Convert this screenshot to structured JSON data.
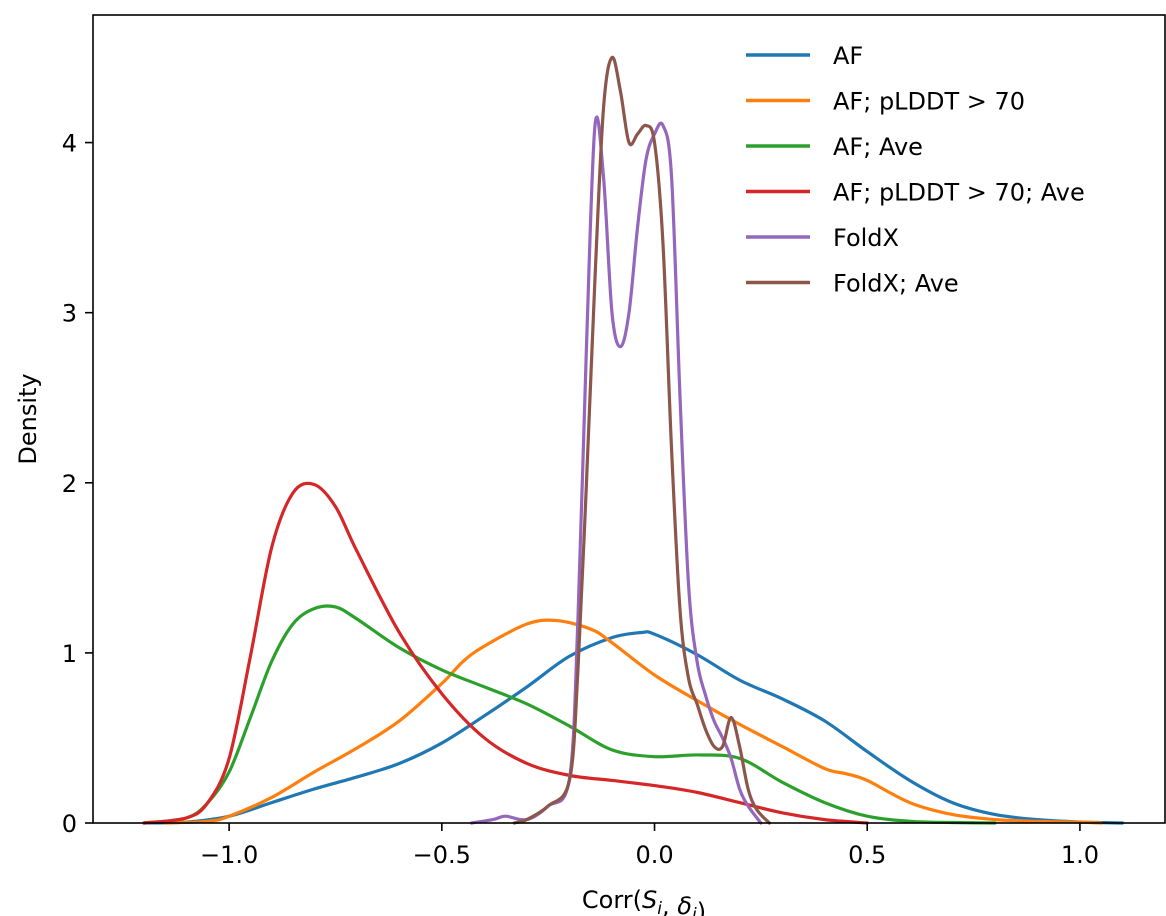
{
  "chart_data": {
    "type": "line",
    "title": "",
    "xlabel": "Corr(S_i, δ_i)",
    "ylabel": "Density",
    "xlim": [
      -1.32,
      1.2
    ],
    "ylim": [
      0,
      4.75
    ],
    "xticks": [
      -1.0,
      -0.5,
      0.0,
      0.5,
      1.0
    ],
    "xtick_labels": [
      "−1.0",
      "−0.5",
      "0.0",
      "0.5",
      "1.0"
    ],
    "yticks": [
      0,
      1,
      2,
      3,
      4
    ],
    "ytick_labels": [
      "0",
      "1",
      "2",
      "3",
      "4"
    ],
    "grid": false,
    "legend_position": "top-right",
    "series": [
      {
        "name": "AF",
        "color": "#1f77b4",
        "x": [
          -1.2,
          -1.1,
          -1.0,
          -0.9,
          -0.8,
          -0.7,
          -0.6,
          -0.5,
          -0.4,
          -0.3,
          -0.2,
          -0.1,
          -0.03,
          0.0,
          0.1,
          0.2,
          0.3,
          0.4,
          0.5,
          0.6,
          0.7,
          0.8,
          0.9,
          1.0,
          1.1
        ],
        "y": [
          0.0,
          0.005,
          0.04,
          0.12,
          0.2,
          0.27,
          0.35,
          0.47,
          0.63,
          0.8,
          0.98,
          1.09,
          1.12,
          1.11,
          0.99,
          0.84,
          0.73,
          0.6,
          0.42,
          0.25,
          0.12,
          0.05,
          0.02,
          0.006,
          0.0
        ]
      },
      {
        "name": "AF; pLDDT > 70",
        "color": "#ff7f0e",
        "x": [
          -1.15,
          -1.05,
          -1.0,
          -0.9,
          -0.8,
          -0.7,
          -0.6,
          -0.5,
          -0.45,
          -0.4,
          -0.3,
          -0.23,
          -0.15,
          -0.1,
          0.0,
          0.1,
          0.2,
          0.3,
          0.4,
          0.45,
          0.5,
          0.6,
          0.7,
          0.8,
          0.9,
          1.0,
          1.05
        ],
        "y": [
          0.0,
          0.01,
          0.04,
          0.15,
          0.3,
          0.44,
          0.6,
          0.82,
          0.95,
          1.04,
          1.17,
          1.19,
          1.14,
          1.06,
          0.87,
          0.72,
          0.58,
          0.45,
          0.32,
          0.29,
          0.25,
          0.12,
          0.05,
          0.02,
          0.01,
          0.005,
          0.0
        ]
      },
      {
        "name": "AF; Ave",
        "color": "#2ca02c",
        "x": [
          -1.2,
          -1.1,
          -1.05,
          -1.0,
          -0.95,
          -0.9,
          -0.85,
          -0.8,
          -0.75,
          -0.7,
          -0.6,
          -0.5,
          -0.4,
          -0.3,
          -0.2,
          -0.1,
          0.0,
          0.1,
          0.2,
          0.3,
          0.4,
          0.5,
          0.6,
          0.7,
          0.8
        ],
        "y": [
          0.0,
          0.03,
          0.12,
          0.3,
          0.62,
          0.95,
          1.17,
          1.26,
          1.27,
          1.2,
          1.03,
          0.9,
          0.8,
          0.7,
          0.57,
          0.43,
          0.39,
          0.4,
          0.38,
          0.24,
          0.12,
          0.04,
          0.01,
          0.003,
          0.0
        ]
      },
      {
        "name": "AF; pLDDT > 70; Ave",
        "color": "#d62728",
        "x": [
          -1.2,
          -1.1,
          -1.05,
          -1.0,
          -0.95,
          -0.9,
          -0.85,
          -0.8,
          -0.75,
          -0.7,
          -0.6,
          -0.5,
          -0.4,
          -0.3,
          -0.2,
          -0.1,
          0.0,
          0.1,
          0.2,
          0.3,
          0.4,
          0.5
        ],
        "y": [
          0.0,
          0.03,
          0.12,
          0.38,
          0.98,
          1.62,
          1.94,
          1.99,
          1.86,
          1.6,
          1.12,
          0.76,
          0.5,
          0.35,
          0.28,
          0.25,
          0.22,
          0.18,
          0.12,
          0.06,
          0.02,
          0.0
        ]
      },
      {
        "name": "FoldX",
        "color": "#9467bd",
        "x": [
          -0.43,
          -0.38,
          -0.35,
          -0.3,
          -0.25,
          -0.2,
          -0.18,
          -0.16,
          -0.14,
          -0.12,
          -0.1,
          -0.08,
          -0.06,
          -0.04,
          -0.02,
          0.0,
          0.02,
          0.04,
          0.06,
          0.08,
          0.1,
          0.12,
          0.14,
          0.16,
          0.18,
          0.2,
          0.22,
          0.25
        ],
        "y": [
          0.0,
          0.02,
          0.04,
          0.02,
          0.1,
          0.26,
          1.2,
          2.8,
          4.1,
          3.8,
          3.0,
          2.8,
          3.0,
          3.5,
          3.9,
          4.05,
          4.1,
          3.8,
          2.5,
          1.4,
          0.95,
          0.75,
          0.6,
          0.5,
          0.38,
          0.2,
          0.1,
          0.0
        ]
      },
      {
        "name": "FoldX; Ave",
        "color": "#8c564b",
        "x": [
          -0.33,
          -0.3,
          -0.25,
          -0.2,
          -0.18,
          -0.16,
          -0.14,
          -0.12,
          -0.1,
          -0.08,
          -0.06,
          -0.04,
          -0.02,
          0.0,
          0.02,
          0.04,
          0.06,
          0.08,
          0.1,
          0.12,
          0.14,
          0.16,
          0.18,
          0.2,
          0.22,
          0.24,
          0.27
        ],
        "y": [
          0.0,
          0.02,
          0.1,
          0.25,
          0.9,
          2.0,
          3.2,
          4.2,
          4.5,
          4.3,
          4.0,
          4.05,
          4.1,
          4.0,
          3.4,
          2.2,
          1.25,
          0.85,
          0.7,
          0.55,
          0.45,
          0.45,
          0.62,
          0.45,
          0.2,
          0.08,
          0.0
        ]
      }
    ]
  }
}
